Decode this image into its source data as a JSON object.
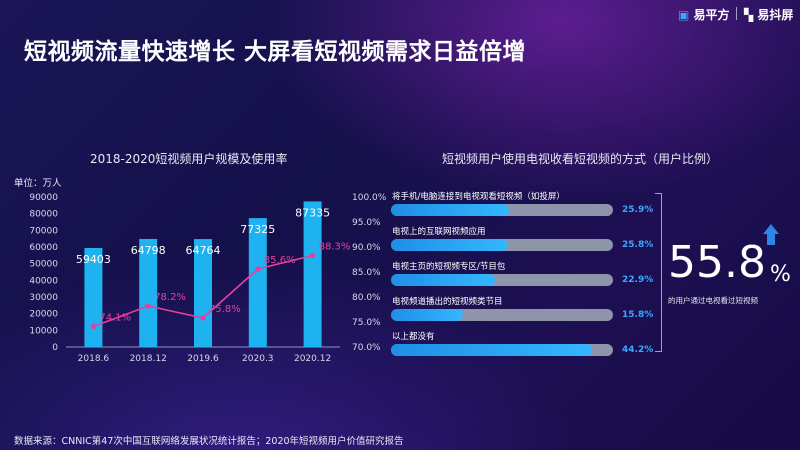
{
  "header": {
    "logo1": "易平方",
    "logo2": "易抖屏"
  },
  "title": "短视频流量快速增长  大屏看短视频需求日益倍增",
  "left_chart": {
    "title": "2018-2020短视频用户规模及使用率",
    "unit_label": "单位：万人"
  },
  "right_chart": {
    "title": "短视频用户使用电视收看短视频的方式（用户比例）",
    "big_number": "55.8",
    "big_unit": "%",
    "big_caption": "的用户通过电视看过短视频"
  },
  "source": "数据来源：CNNIC第47次中国互联网络发展状况统计报告；2020年短视频用户价值研究报告",
  "colors": {
    "bar": "#1fb2f0",
    "line": "#e5419b",
    "accent": "#3aa8ff",
    "track": "#8e94aa"
  },
  "chart_data": [
    {
      "type": "bar",
      "title": "2018-2020短视频用户规模及使用率",
      "categories": [
        "2018.6",
        "2018.12",
        "2019.6",
        "2020.3",
        "2020.12"
      ],
      "series": [
        {
          "kind": "bar",
          "values": [
            59403,
            64798,
            64764,
            77325,
            87335
          ],
          "labels": [
            "59403",
            "64798",
            "64764",
            "77325",
            "87335"
          ]
        },
        {
          "kind": "line",
          "values": [
            74.1,
            78.2,
            75.8,
            85.6,
            88.3
          ],
          "labels": [
            "74.1%",
            "78.2%",
            "75.8%",
            "85.6%",
            "88.3%"
          ]
        }
      ],
      "y_left": {
        "ylim": [
          0,
          90000
        ],
        "ticks": [
          "0",
          "10000",
          "20000",
          "30000",
          "40000",
          "50000",
          "60000",
          "70000",
          "80000",
          "90000"
        ]
      },
      "y_right": {
        "ylim": [
          70,
          100
        ],
        "ticks": [
          "70.0%",
          "75.0%",
          "80.0%",
          "85.0%",
          "90.0%",
          "95.0%",
          "100.0%"
        ]
      },
      "ylabel": "单位：万人",
      "grid": false
    },
    {
      "type": "bar",
      "orientation": "horizontal",
      "title": "短视频用户使用电视收看短视频的方式（用户比例）",
      "categories": [
        "将手机/电脑连接到电视观看短视频（如投屏）",
        "电视上的互联网视频应用",
        "电视主页的短视频专区/节目包",
        "电视频道播出的短视频类节目",
        "以上都没有"
      ],
      "values": [
        25.9,
        25.8,
        22.9,
        15.8,
        44.2
      ],
      "labels": [
        "25.9%",
        "25.8%",
        "22.9%",
        "15.8%",
        "44.2%"
      ],
      "xlim": [
        0,
        100
      ]
    }
  ]
}
